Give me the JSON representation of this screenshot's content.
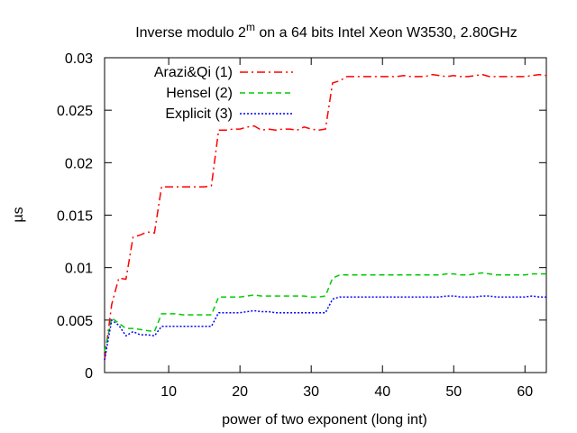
{
  "chart_data": {
    "type": "line",
    "title_main": "Inverse modulo 2",
    "title_sup": "m",
    "title_rest": " on a 64 bits Intel Xeon W3530, 2.80GHz",
    "xlabel": "power of two exponent (long int)",
    "ylabel": "µs",
    "xlim": [
      1,
      63
    ],
    "ylim": [
      0,
      0.03
    ],
    "xticks": [
      10,
      20,
      30,
      40,
      50,
      60
    ],
    "xtick_labels": [
      "10",
      "20",
      "30",
      "40",
      "50",
      "60"
    ],
    "yticks": [
      0,
      0.005,
      0.01,
      0.015,
      0.02,
      0.025,
      0.03
    ],
    "ytick_labels": [
      "0",
      "0.005",
      "0.01",
      "0.015",
      "0.02",
      "0.025",
      "0.03"
    ],
    "legend_position": "top-left",
    "grid": false,
    "series": [
      {
        "name": "Arazi&Qi (1)",
        "color": "#ff0000",
        "dash": "dash-dot",
        "x": [
          1,
          2,
          3,
          4,
          5,
          6,
          7,
          8,
          9,
          10,
          11,
          12,
          13,
          14,
          15,
          16,
          17,
          18,
          19,
          20,
          21,
          22,
          23,
          24,
          25,
          26,
          27,
          28,
          29,
          30,
          31,
          32,
          33,
          34,
          35,
          36,
          37,
          38,
          39,
          40,
          41,
          42,
          43,
          44,
          45,
          46,
          47,
          48,
          49,
          50,
          51,
          52,
          53,
          54,
          55,
          56,
          57,
          58,
          59,
          60,
          61,
          62,
          63
        ],
        "y": [
          0.0012,
          0.0065,
          0.009,
          0.0089,
          0.0129,
          0.0131,
          0.0134,
          0.0133,
          0.0177,
          0.0177,
          0.0177,
          0.0177,
          0.0177,
          0.0177,
          0.0177,
          0.0178,
          0.0231,
          0.0231,
          0.0232,
          0.0232,
          0.0234,
          0.0235,
          0.0231,
          0.0232,
          0.0231,
          0.0232,
          0.0232,
          0.0231,
          0.0234,
          0.0232,
          0.0231,
          0.0232,
          0.0276,
          0.0278,
          0.0282,
          0.0282,
          0.0282,
          0.0282,
          0.0282,
          0.0282,
          0.0282,
          0.0282,
          0.0283,
          0.0282,
          0.0282,
          0.0282,
          0.0284,
          0.0283,
          0.0282,
          0.0283,
          0.0282,
          0.0282,
          0.0283,
          0.0284,
          0.0282,
          0.0282,
          0.0282,
          0.0282,
          0.0282,
          0.0282,
          0.0283,
          0.0284,
          0.0283
        ]
      },
      {
        "name": "Hensel (2)",
        "color": "#00cc00",
        "dash": "dash",
        "x": [
          1,
          2,
          3,
          4,
          5,
          6,
          7,
          8,
          9,
          10,
          11,
          12,
          13,
          14,
          15,
          16,
          17,
          18,
          19,
          20,
          21,
          22,
          23,
          24,
          25,
          26,
          27,
          28,
          29,
          30,
          31,
          32,
          33,
          34,
          35,
          36,
          37,
          38,
          39,
          40,
          41,
          42,
          43,
          44,
          45,
          46,
          47,
          48,
          49,
          50,
          51,
          52,
          53,
          54,
          55,
          56,
          57,
          58,
          59,
          60,
          61,
          62,
          63
        ],
        "y": [
          0.002,
          0.0052,
          0.0047,
          0.0042,
          0.0042,
          0.0041,
          0.004,
          0.0039,
          0.0056,
          0.0056,
          0.0056,
          0.0055,
          0.0055,
          0.0055,
          0.0055,
          0.0055,
          0.0072,
          0.0072,
          0.0072,
          0.0072,
          0.0073,
          0.0074,
          0.0073,
          0.0073,
          0.0073,
          0.0073,
          0.0073,
          0.0073,
          0.0073,
          0.0072,
          0.0072,
          0.0073,
          0.009,
          0.0093,
          0.0093,
          0.0093,
          0.0093,
          0.0093,
          0.0093,
          0.0093,
          0.0093,
          0.0093,
          0.0093,
          0.0093,
          0.0093,
          0.0093,
          0.0093,
          0.0093,
          0.0094,
          0.0094,
          0.0093,
          0.0093,
          0.0094,
          0.0095,
          0.0094,
          0.0093,
          0.0093,
          0.0093,
          0.0093,
          0.0093,
          0.0094,
          0.0094,
          0.0094
        ]
      },
      {
        "name": "Explicit (3)",
        "color": "#0000ff",
        "dash": "dot",
        "x": [
          1,
          2,
          3,
          4,
          5,
          6,
          7,
          8,
          9,
          10,
          11,
          12,
          13,
          14,
          15,
          16,
          17,
          18,
          19,
          20,
          21,
          22,
          23,
          24,
          25,
          26,
          27,
          28,
          29,
          30,
          31,
          32,
          33,
          34,
          35,
          36,
          37,
          38,
          39,
          40,
          41,
          42,
          43,
          44,
          45,
          46,
          47,
          48,
          49,
          50,
          51,
          52,
          53,
          54,
          55,
          56,
          57,
          58,
          59,
          60,
          61,
          62,
          63
        ],
        "y": [
          0.0012,
          0.005,
          0.0045,
          0.0035,
          0.0039,
          0.0036,
          0.0036,
          0.0035,
          0.0044,
          0.0044,
          0.0044,
          0.0044,
          0.0044,
          0.0044,
          0.0044,
          0.0044,
          0.0057,
          0.0057,
          0.0057,
          0.0057,
          0.0058,
          0.0059,
          0.0058,
          0.0058,
          0.0057,
          0.0057,
          0.0057,
          0.0057,
          0.0057,
          0.0057,
          0.0057,
          0.0057,
          0.007,
          0.0072,
          0.0072,
          0.0072,
          0.0072,
          0.0072,
          0.0072,
          0.0072,
          0.0072,
          0.0072,
          0.0072,
          0.0072,
          0.0072,
          0.0072,
          0.0072,
          0.0072,
          0.0073,
          0.0073,
          0.0072,
          0.0072,
          0.0072,
          0.0073,
          0.0073,
          0.0072,
          0.0072,
          0.0072,
          0.0072,
          0.0072,
          0.0073,
          0.0072,
          0.0072
        ]
      }
    ]
  }
}
